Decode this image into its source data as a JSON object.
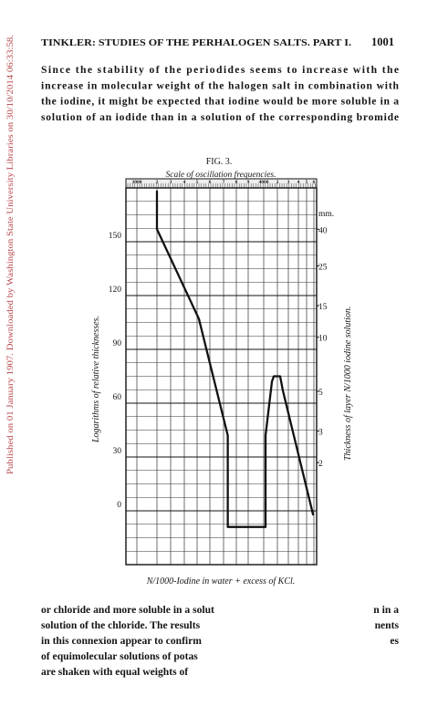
{
  "sidebar": "Published on 01 January 1907. Downloaded by Washington State University Libraries on 30/10/2014 06:33:58.",
  "header": {
    "title": "TINKLER: STUDIES OF THE PERHALOGEN SALTS. PART I.",
    "page": "1001"
  },
  "paragraph": [
    "Since the stability of the periodides seems to increase with the",
    "increase in molecular weight of the halogen salt in combination with",
    "the iodine, it might be expected that iodine would be more soluble in a",
    "solution of an iodide than in a solution of the corresponding bromide"
  ],
  "figure": {
    "label": "FIG. 3.",
    "chart_data": {
      "type": "line",
      "title": "Scale of oscillation frequencies.",
      "xlabel": "N/1000-Iodine in water + excess of KCl.",
      "ylabel": "Logarithms of relative thicknesses.",
      "y2label": "Thickness of layer N/1000 iodine solution.",
      "y2unit": "mm.",
      "xlim": [
        2900,
        4640
      ],
      "xticks": [
        3000,
        {
          "value": 3200,
          "label": "2"
        },
        {
          "value": 3300,
          "label": "3"
        },
        {
          "value": 3400,
          "label": "4"
        },
        {
          "value": 3500,
          "label": "5"
        },
        {
          "value": 3600,
          "label": "6"
        },
        {
          "value": 3700,
          "label": "7"
        },
        {
          "value": 3800,
          "label": "8"
        },
        {
          "value": 3900,
          "label": "9"
        },
        4000,
        {
          "value": 4200,
          "label": "2"
        },
        {
          "value": 4300,
          "label": "3"
        },
        {
          "value": 4400,
          "label": "4"
        },
        {
          "value": 4500,
          "label": "5"
        },
        {
          "value": 4600,
          "label": "6"
        }
      ],
      "ylim": [
        -30,
        180
      ],
      "yticks": [
        0,
        30,
        60,
        90,
        120,
        150
      ],
      "y2lim": [
        0.54,
        68
      ],
      "y2log": true,
      "y2ticks": [
        40,
        25,
        15,
        10,
        5,
        3,
        2
      ],
      "grid": true,
      "series": [
        {
          "color": "#111111",
          "x": [
            3200,
            3200,
            3514,
            3733,
            3733,
            4027,
            4027,
            4120,
            4147,
            4225,
            4250,
            4588
          ],
          "values": [
            178,
            157,
            107,
            42,
            -9,
            -9,
            42,
            72,
            75,
            75,
            67,
            -2
          ]
        }
      ]
    }
  },
  "continuation": [
    {
      "left": "or chloride and more soluble in a solut",
      "right": "n in a"
    },
    {
      "left": "solution of the chloride.  The results",
      "right": "nents"
    },
    {
      "left": "in this connexion appear to confirm",
      "right": "es"
    },
    {
      "left": "of equimolecular solutions of potas",
      "right": null
    },
    {
      "left": "are shaken with equal weights of",
      "right": null
    }
  ]
}
